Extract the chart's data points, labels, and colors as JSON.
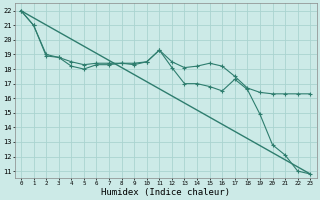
{
  "background_color": "#cceae7",
  "grid_color": "#aad4d0",
  "line_color": "#2e7d6e",
  "xlabel": "Humidex (Indice chaleur)",
  "ylim": [
    10.5,
    22.5
  ],
  "xlim": [
    -0.5,
    23.5
  ],
  "yticks": [
    11,
    12,
    13,
    14,
    15,
    16,
    17,
    18,
    19,
    20,
    21,
    22
  ],
  "xticks": [
    0,
    1,
    2,
    3,
    4,
    5,
    6,
    7,
    8,
    9,
    10,
    11,
    12,
    13,
    14,
    15,
    16,
    17,
    18,
    19,
    20,
    21,
    22,
    23
  ],
  "series1_x": [
    0,
    1,
    2,
    3,
    4,
    5,
    6,
    7,
    8,
    9,
    10,
    11,
    12,
    13,
    14,
    15,
    16,
    17,
    18,
    19,
    20,
    21,
    22,
    23
  ],
  "series1_y": [
    22.0,
    21.0,
    18.9,
    18.8,
    18.2,
    18.0,
    18.3,
    18.3,
    18.4,
    18.3,
    18.5,
    19.3,
    18.1,
    17.0,
    17.0,
    16.8,
    16.5,
    17.3,
    16.6,
    14.9,
    12.8,
    12.1,
    11.0,
    10.8
  ],
  "series2_x": [
    0,
    1,
    2,
    3,
    4,
    5,
    6,
    7,
    8,
    9,
    10,
    11,
    12,
    13,
    14,
    15,
    16,
    17,
    18,
    19,
    20,
    21,
    22,
    23
  ],
  "series2_y": [
    22.0,
    21.0,
    19.0,
    18.8,
    18.5,
    18.3,
    18.4,
    18.4,
    18.4,
    18.4,
    18.5,
    19.3,
    18.5,
    18.1,
    18.2,
    18.4,
    18.2,
    17.5,
    16.7,
    16.4,
    16.3,
    16.3,
    16.3,
    16.3
  ],
  "series3_x": [
    0,
    23
  ],
  "series3_y": [
    22.0,
    10.8
  ]
}
